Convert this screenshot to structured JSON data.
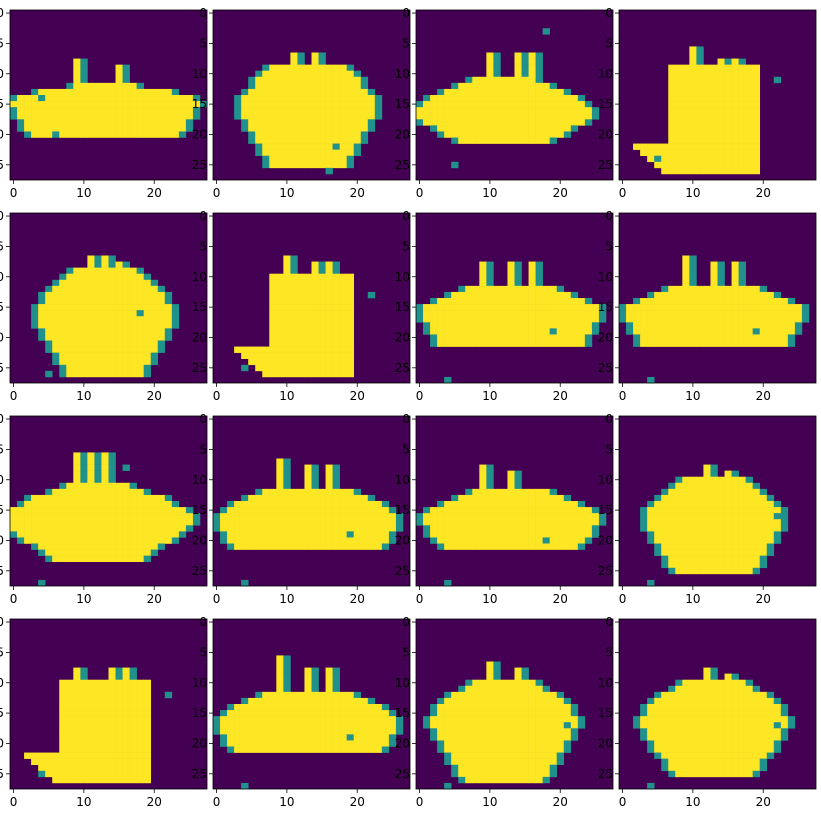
{
  "colors": {
    "background": "#440154",
    "mid": "#21918c",
    "foreground": "#fde725"
  },
  "chart_data": {
    "type": "heatmap",
    "grid": "4x4",
    "image_size": [
      28,
      28
    ],
    "x_ticks": [
      "0",
      "10",
      "20"
    ],
    "y_ticks": [
      "0",
      "5",
      "10",
      "15",
      "20",
      "25"
    ],
    "panels": [
      {
        "shape": "boat",
        "bottom": 20,
        "topY": 12,
        "halfTop": 4,
        "halfBot": 10,
        "wideY": 15,
        "halfWide": 13,
        "cx": 13,
        "spikes": [
          [
            9,
            8
          ],
          [
            15,
            9
          ]
        ],
        "debris": [
          [
            6,
            20
          ],
          [
            4,
            14
          ]
        ]
      },
      {
        "shape": "blob",
        "bottom": 25,
        "topY": 9,
        "halfTop": 5,
        "halfBot": 5,
        "wideY": 16,
        "halfWide": 9,
        "cx": 13,
        "spikes": [
          [
            11,
            7
          ],
          [
            14,
            7
          ]
        ],
        "debris": [
          [
            17,
            22
          ],
          [
            16,
            26
          ]
        ]
      },
      {
        "shape": "blob",
        "bottom": 21,
        "topY": 11,
        "halfTop": 4,
        "halfBot": 6,
        "wideY": 17,
        "halfWide": 12,
        "cx": 12,
        "spikes": [
          [
            10,
            7
          ],
          [
            14,
            7
          ],
          [
            16,
            7
          ]
        ],
        "debris": [
          [
            18,
            3
          ],
          [
            5,
            25
          ]
        ]
      },
      {
        "shape": "box",
        "bottom": 26,
        "left": 7,
        "right": 19,
        "top": 9,
        "spikes": [
          [
            10,
            6
          ],
          [
            14,
            8
          ],
          [
            16,
            8
          ]
        ],
        "debris": [
          [
            22,
            11
          ],
          [
            5,
            24
          ]
        ]
      },
      {
        "shape": "blob",
        "bottom": 26,
        "topY": 9,
        "halfTop": 4,
        "halfBot": 5,
        "wideY": 17,
        "halfWide": 9,
        "cx": 13,
        "spikes": [
          [
            11,
            7
          ],
          [
            13,
            7
          ],
          [
            15,
            8
          ]
        ],
        "debris": [
          [
            18,
            16
          ],
          [
            5,
            26
          ]
        ]
      },
      {
        "shape": "box",
        "bottom": 26,
        "left": 8,
        "right": 19,
        "top": 10,
        "spikes": [
          [
            10,
            7
          ],
          [
            14,
            8
          ],
          [
            16,
            8
          ]
        ],
        "debris": [
          [
            22,
            13
          ],
          [
            4,
            25
          ]
        ]
      },
      {
        "shape": "boat",
        "bottom": 21,
        "topY": 12,
        "halfTop": 6,
        "halfBot": 10,
        "wideY": 16,
        "halfWide": 12,
        "cx": 13,
        "spikes": [
          [
            9,
            8
          ],
          [
            13,
            8
          ],
          [
            16,
            8
          ]
        ],
        "debris": [
          [
            4,
            27
          ],
          [
            19,
            19
          ]
        ]
      },
      {
        "shape": "boat",
        "bottom": 21,
        "topY": 12,
        "halfTop": 6,
        "halfBot": 10,
        "wideY": 16,
        "halfWide": 12,
        "cx": 13,
        "spikes": [
          [
            9,
            7
          ],
          [
            13,
            8
          ],
          [
            16,
            8
          ]
        ],
        "debris": [
          [
            4,
            27
          ],
          [
            19,
            19
          ]
        ]
      },
      {
        "shape": "blob",
        "bottom": 23,
        "topY": 11,
        "halfTop": 4,
        "halfBot": 6,
        "wideY": 17,
        "halfWide": 13,
        "cx": 12,
        "spikes": [
          [
            9,
            6
          ],
          [
            11,
            6
          ],
          [
            13,
            6
          ]
        ],
        "debris": [
          [
            4,
            27
          ],
          [
            16,
            8
          ]
        ]
      },
      {
        "shape": "boat",
        "bottom": 21,
        "topY": 12,
        "halfTop": 6,
        "halfBot": 10,
        "wideY": 17,
        "halfWide": 12,
        "cx": 13,
        "spikes": [
          [
            9,
            7
          ],
          [
            13,
            8
          ],
          [
            16,
            8
          ]
        ],
        "debris": [
          [
            4,
            27
          ],
          [
            19,
            19
          ]
        ]
      },
      {
        "shape": "boat",
        "bottom": 21,
        "topY": 12,
        "halfTop": 5,
        "halfBot": 9,
        "wideY": 17,
        "halfWide": 12,
        "cx": 13,
        "spikes": [
          [
            9,
            8
          ],
          [
            13,
            9
          ]
        ],
        "debris": [
          [
            4,
            27
          ],
          [
            18,
            20
          ]
        ]
      },
      {
        "shape": "blob",
        "bottom": 25,
        "topY": 10,
        "halfTop": 4,
        "halfBot": 5,
        "wideY": 17,
        "halfWide": 9,
        "cx": 13,
        "spikes": [
          [
            12,
            8
          ],
          [
            15,
            9
          ]
        ],
        "debris": [
          [
            4,
            27
          ],
          [
            22,
            16
          ]
        ]
      },
      {
        "shape": "box",
        "bottom": 26,
        "left": 7,
        "right": 19,
        "top": 10,
        "spikes": [
          [
            9,
            8
          ],
          [
            14,
            8
          ],
          [
            16,
            8
          ]
        ],
        "debris": [
          [
            22,
            12
          ],
          [
            4,
            25
          ]
        ]
      },
      {
        "shape": "boat",
        "bottom": 21,
        "topY": 12,
        "halfTop": 6,
        "halfBot": 10,
        "wideY": 17,
        "halfWide": 12,
        "cx": 13,
        "spikes": [
          [
            9,
            6
          ],
          [
            13,
            8
          ],
          [
            16,
            8
          ]
        ],
        "debris": [
          [
            4,
            27
          ],
          [
            19,
            19
          ]
        ]
      },
      {
        "shape": "blob",
        "bottom": 26,
        "topY": 10,
        "halfTop": 4,
        "halfBot": 5,
        "wideY": 17,
        "halfWide": 10,
        "cx": 12,
        "spikes": [
          [
            10,
            7
          ],
          [
            14,
            8
          ]
        ],
        "debris": [
          [
            4,
            27
          ],
          [
            21,
            17
          ]
        ]
      },
      {
        "shape": "blob",
        "bottom": 25,
        "topY": 10,
        "halfTop": 4,
        "halfBot": 5,
        "wideY": 17,
        "halfWide": 10,
        "cx": 13,
        "spikes": [
          [
            12,
            8
          ],
          [
            15,
            9
          ]
        ],
        "debris": [
          [
            4,
            27
          ],
          [
            22,
            17
          ]
        ]
      }
    ]
  }
}
